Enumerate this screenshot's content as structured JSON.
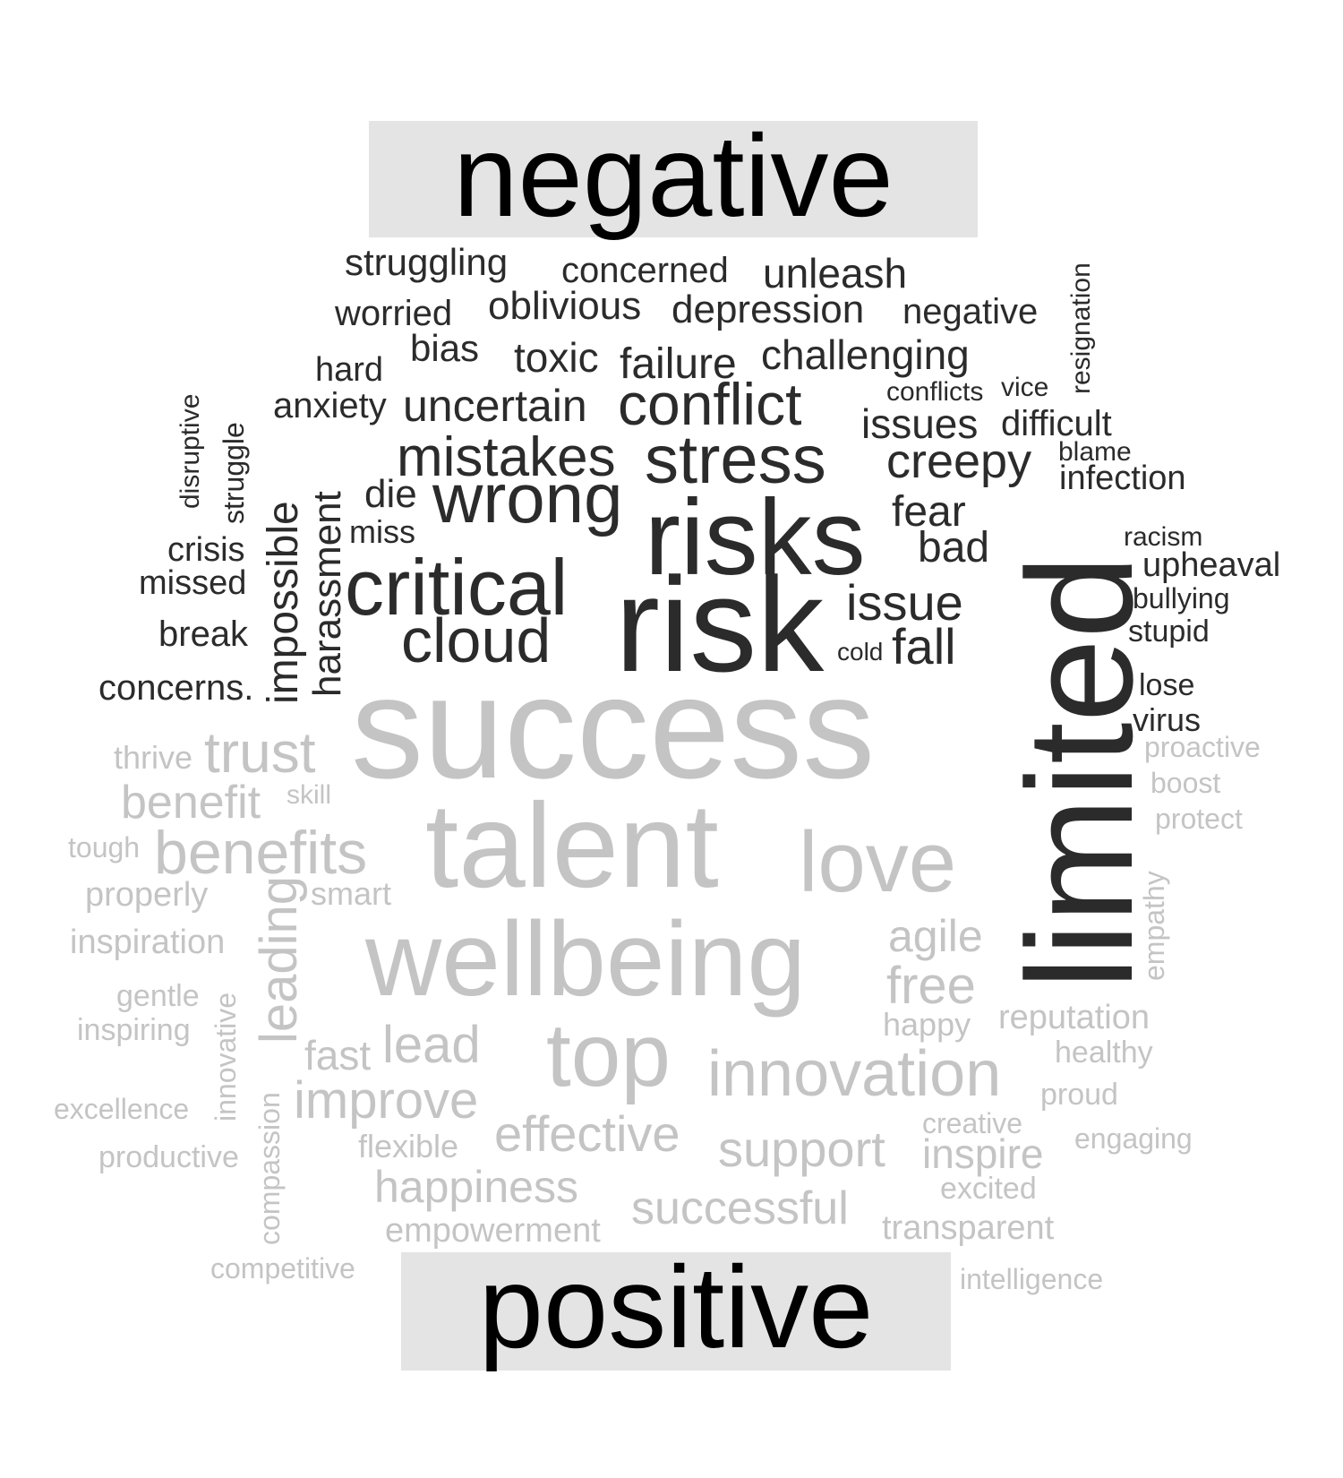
{
  "titles": {
    "negative": "negative",
    "positive": "positive"
  },
  "colors": {
    "negative_words": "#2b2b2b",
    "positive_words": "#c4c4c4",
    "title_box": "#e4e4e4",
    "title_text": "#000000"
  },
  "words": {
    "negative": {
      "struggling": "struggling",
      "concerned": "concerned",
      "unleash": "unleash",
      "worried": "worried",
      "oblivious": "oblivious",
      "depression": "depression",
      "negative": "negative",
      "resignation": "resignation",
      "bias": "bias",
      "hard": "hard",
      "toxic": "toxic",
      "failure": "failure",
      "challenging": "challenging",
      "anxiety": "anxiety",
      "uncertain": "uncertain",
      "conflict": "conflict",
      "conflicts": "conflicts",
      "vice": "vice",
      "disruptive": "disruptive",
      "struggle": "struggle",
      "issues": "issues",
      "difficult": "difficult",
      "mistakes": "mistakes",
      "stress": "stress",
      "creepy": "creepy",
      "blame": "blame",
      "harassment": "harassment",
      "die": "die",
      "wrong": "wrong",
      "infection": "infection",
      "impossible": "impossible",
      "risks": "risks",
      "fear": "fear",
      "miss": "miss",
      "crisis": "crisis",
      "bad": "bad",
      "racism": "racism",
      "missed": "missed",
      "critical": "critical",
      "upheaval": "upheaval",
      "issue": "issue",
      "bullying": "bullying",
      "risk": "risk",
      "break": "break",
      "cloud": "cloud",
      "stupid": "stupid",
      "cold": "cold",
      "fall": "fall",
      "concerns": "concerns.",
      "lose": "lose",
      "virus": "virus",
      "limited": "limited"
    },
    "positive": {
      "success": "success",
      "proactive": "proactive",
      "thrive": "thrive",
      "trust": "trust",
      "boost": "boost",
      "skill": "skill",
      "benefit": "benefit",
      "protect": "protect",
      "tough": "tough",
      "benefits": "benefits",
      "talent": "talent",
      "love": "love",
      "empathy": "empathy",
      "properly": "properly",
      "smart": "smart",
      "leading": "leading",
      "agile": "agile",
      "inspiration": "inspiration",
      "wellbeing": "wellbeing",
      "free": "free",
      "gentle": "gentle",
      "innovative": "innovative",
      "inspiring": "inspiring",
      "happy": "happy",
      "reputation": "reputation",
      "healthy": "healthy",
      "fast": "fast",
      "lead": "lead",
      "top": "top",
      "innovation": "innovation",
      "excellence": "excellence",
      "compassion": "compassion",
      "improve": "improve",
      "proud": "proud",
      "creative": "creative",
      "engaging": "engaging",
      "flexible": "flexible",
      "effective": "effective",
      "support": "support",
      "inspire": "inspire",
      "productive": "productive",
      "happiness": "happiness",
      "excited": "excited",
      "successful": "successful",
      "empowerment": "empowerment",
      "transparent": "transparent",
      "competitive": "competitive",
      "intelligence": "intelligence"
    }
  }
}
